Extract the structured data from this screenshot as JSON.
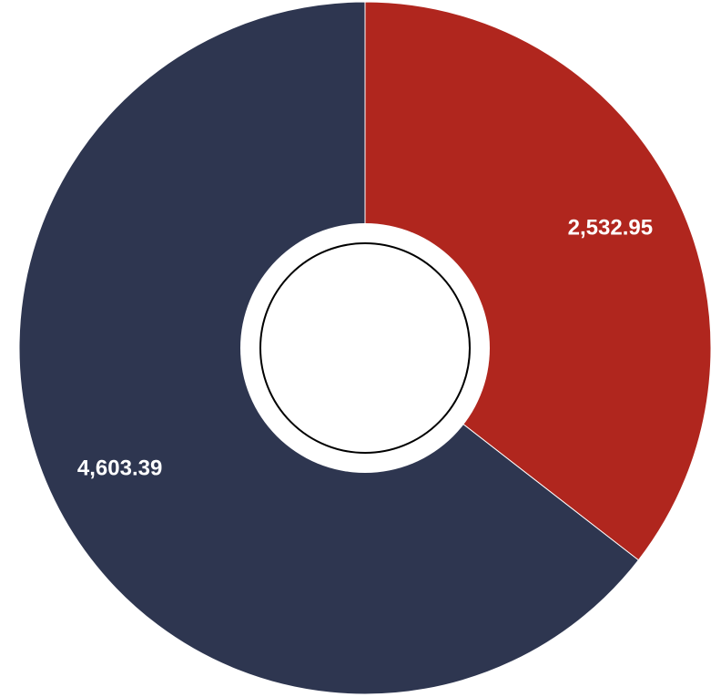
{
  "chart_data": {
    "type": "pie",
    "variant": "donut",
    "title": "",
    "slices": [
      {
        "label": "2,532.95",
        "value": 2532.95,
        "color": "#B0261E"
      },
      {
        "label": "4,603.39",
        "value": 4603.39,
        "color": "#2E3650"
      }
    ],
    "start_angle": "12 o'clock",
    "direction": "clockwise",
    "legend": "none",
    "colors": {
      "background": "#FFFFFF",
      "center": "#FFFFFF",
      "center_ring": "#000000"
    }
  }
}
